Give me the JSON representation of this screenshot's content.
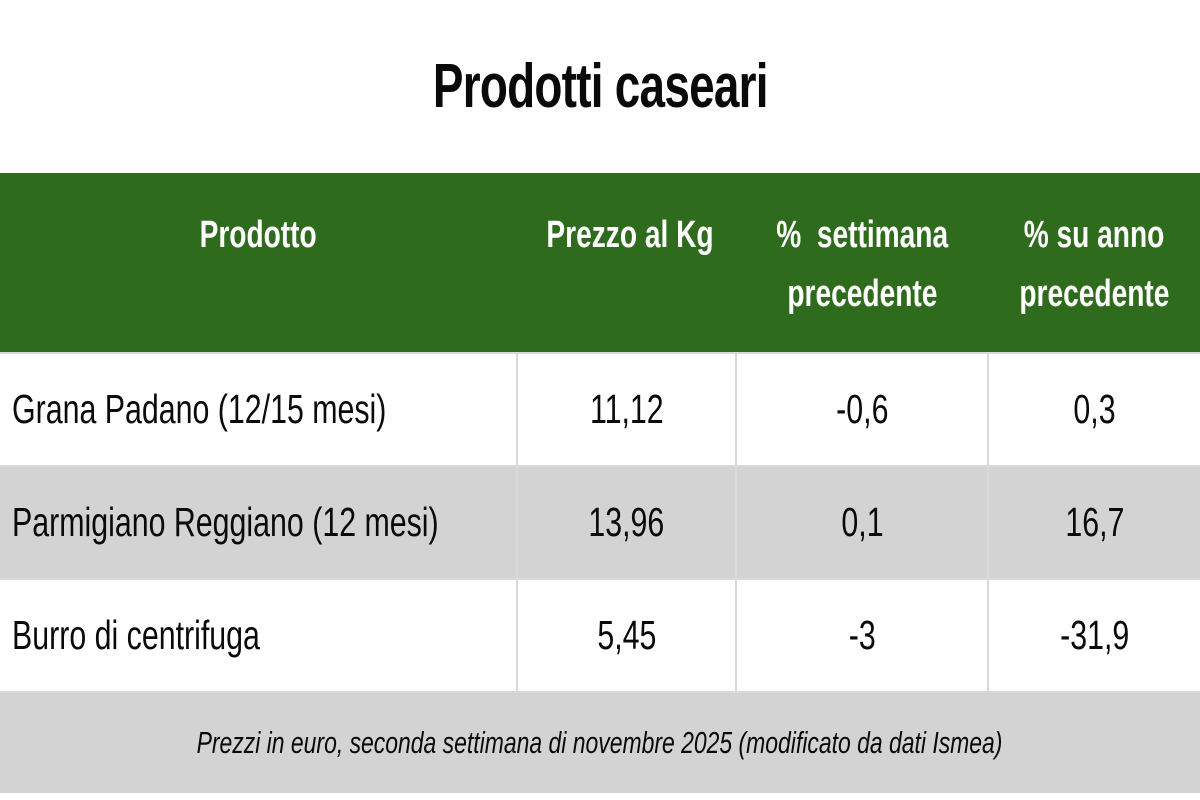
{
  "title": "Prodotti caseari",
  "colors": {
    "header_bg": "#2e6b1c",
    "row_alt_bg": "#d3d3d3",
    "footer_bg": "#d3d3d3",
    "border": "#d9d9d9",
    "header_text": "#ffffff",
    "text": "#0a0a0a"
  },
  "table": {
    "columns": [
      {
        "label_line1": "Prodotto",
        "label_line2": ""
      },
      {
        "label_line1": "Prezzo al Kg",
        "label_line2": ""
      },
      {
        "label_line1": "%  settimana",
        "label_line2": "precedente"
      },
      {
        "label_line1": "% su anno",
        "label_line2": "precedente"
      }
    ],
    "rows": [
      {
        "product": "Grana Padano (12/15 mesi)",
        "price_kg": "11,12",
        "pct_week": "-0,6",
        "pct_year": "0,3"
      },
      {
        "product": "Parmigiano Reggiano (12 mesi)",
        "price_kg": "13,96",
        "pct_week": "0,1",
        "pct_year": "16,7"
      },
      {
        "product": "Burro di centrifuga",
        "price_kg": "5,45",
        "pct_week": "-3",
        "pct_year": "-31,9"
      }
    ]
  },
  "footer": {
    "note": "Prezzi in euro, seconda settimana di novembre 2025 (modificato da dati Ismea)"
  },
  "chart_data": {
    "type": "table",
    "title": "Prodotti caseari",
    "columns": [
      "Prodotto",
      "Prezzo al Kg",
      "% settimana precedente",
      "% su anno precedente"
    ],
    "rows": [
      [
        "Grana Padano (12/15 mesi)",
        11.12,
        -0.6,
        0.3
      ],
      [
        "Parmigiano Reggiano (12 mesi)",
        13.96,
        0.1,
        16.7
      ],
      [
        "Burro di centrifuga",
        5.45,
        -3,
        -31.9
      ]
    ],
    "note": "Prezzi in euro, seconda settimana di novembre 2025 (modificato da dati Ismea)",
    "units": "EUR/kg"
  }
}
